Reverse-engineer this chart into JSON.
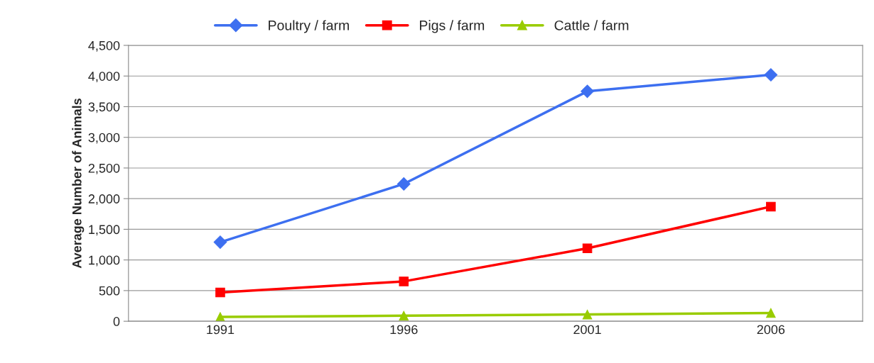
{
  "chart_data": {
    "type": "line",
    "ylabel": "Average Number of Animals",
    "categories": [
      "1991",
      "1996",
      "2001",
      "2006"
    ],
    "series": [
      {
        "name": "Poultry / farm",
        "color": "#3d6ff0",
        "values": [
          1290,
          2240,
          3750,
          4020
        ],
        "marker": "diamond"
      },
      {
        "name": "Pigs / farm",
        "color": "#ff0000",
        "values": [
          470,
          650,
          1190,
          1870
        ],
        "marker": "square"
      },
      {
        "name": "Cattle / farm",
        "color": "#99cc00",
        "values": [
          70,
          90,
          110,
          135
        ],
        "marker": "triangle"
      }
    ],
    "ylim": [
      0,
      4500
    ],
    "yticks": [
      {
        "value": 0,
        "label": "0"
      },
      {
        "value": 500,
        "label": "500"
      },
      {
        "value": 1000,
        "label": "1,000"
      },
      {
        "value": 1500,
        "label": "1,500"
      },
      {
        "value": 2000,
        "label": "2,000"
      },
      {
        "value": 2500,
        "label": "2,500"
      },
      {
        "value": 3000,
        "label": "3,000"
      },
      {
        "value": 3500,
        "label": "3,500"
      },
      {
        "value": 4000,
        "label": "4,000"
      },
      {
        "value": 4500,
        "label": "4,500"
      }
    ],
    "grid": "y",
    "legend": "top",
    "line_style": "solid"
  }
}
